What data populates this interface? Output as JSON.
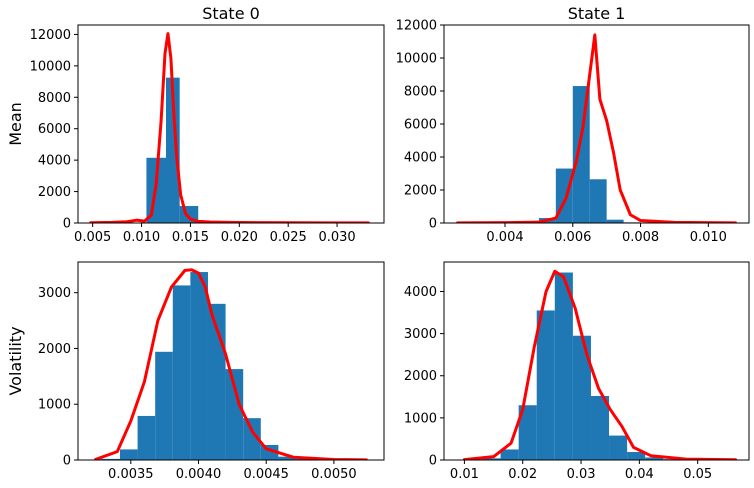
{
  "chart_data": [
    {
      "type": "bar",
      "title": "State 0",
      "ylabel": "Mean",
      "xlim": [
        0.0035,
        0.0348
      ],
      "ylim": [
        0,
        12600
      ],
      "xticks": [
        0.005,
        0.01,
        0.015,
        0.02,
        0.025,
        0.03
      ],
      "xtick_labels": [
        "0.005",
        "0.010",
        "0.015",
        "0.020",
        "0.025",
        "0.030"
      ],
      "yticks": [
        0,
        2000,
        4000,
        6000,
        8000,
        10000,
        12000
      ],
      "ytick_labels": [
        "0",
        "2000",
        "4000",
        "6000",
        "8000",
        "10000",
        "12000"
      ],
      "histogram": {
        "bin_edges": [
          0.0048,
          0.0076,
          0.0105,
          0.0125,
          0.0139,
          0.0158,
          0.0187,
          0.0216,
          0.0245,
          0.0274,
          0.0303,
          0.0332
        ],
        "counts": [
          5,
          20,
          4150,
          9250,
          1080,
          60,
          20,
          10,
          5,
          3,
          2
        ]
      },
      "kde": {
        "x": [
          0.0048,
          0.007,
          0.0085,
          0.0095,
          0.0103,
          0.011,
          0.0115,
          0.012,
          0.0124,
          0.0127,
          0.013,
          0.0133,
          0.0136,
          0.014,
          0.0145,
          0.015,
          0.0158,
          0.017,
          0.019,
          0.022,
          0.026,
          0.03,
          0.0332
        ],
        "y": [
          20,
          40,
          80,
          180,
          120,
          500,
          2500,
          6500,
          10800,
          12050,
          10500,
          7000,
          4200,
          1800,
          600,
          250,
          100,
          60,
          40,
          25,
          15,
          10,
          5
        ]
      }
    },
    {
      "type": "bar",
      "title": "State 1",
      "ylabel": "",
      "xlim": [
        0.0022,
        0.0112
      ],
      "ylim": [
        0,
        12000
      ],
      "xticks": [
        0.004,
        0.006,
        0.008,
        0.01
      ],
      "xtick_labels": [
        "0.004",
        "0.006",
        "0.008",
        "0.010"
      ],
      "yticks": [
        0,
        2000,
        4000,
        6000,
        8000,
        10000,
        12000
      ],
      "ytick_labels": [
        "0",
        "2000",
        "4000",
        "6000",
        "8000",
        "10000",
        "12000"
      ],
      "histogram": {
        "bin_edges": [
          0.0026,
          0.0034,
          0.0042,
          0.005,
          0.0055,
          0.006,
          0.0065,
          0.007,
          0.0075,
          0.008,
          0.0088,
          0.0096,
          0.0104,
          0.0108
        ],
        "counts": [
          3,
          5,
          40,
          300,
          3300,
          8300,
          2650,
          200,
          40,
          10,
          5,
          3,
          2
        ]
      },
      "kde": {
        "x": [
          0.0026,
          0.004,
          0.005,
          0.0055,
          0.0058,
          0.0061,
          0.0063,
          0.0065,
          0.00665,
          0.0068,
          0.007,
          0.0072,
          0.0074,
          0.0077,
          0.008,
          0.009,
          0.0108
        ],
        "y": [
          10,
          20,
          50,
          300,
          1500,
          3700,
          5800,
          9000,
          11400,
          7500,
          6200,
          4300,
          2000,
          500,
          150,
          40,
          10
        ]
      }
    },
    {
      "type": "bar",
      "title": "",
      "ylabel": "Volatility",
      "xlim": [
        0.00311,
        0.00537
      ],
      "ylim": [
        0,
        3550
      ],
      "xticks": [
        0.0035,
        0.004,
        0.0045,
        0.005
      ],
      "xtick_labels": [
        "0.0035",
        "0.0040",
        "0.0045",
        "0.0050"
      ],
      "yticks": [
        0,
        1000,
        2000,
        3000
      ],
      "ytick_labels": [
        "0",
        "1000",
        "2000",
        "3000"
      ],
      "histogram": {
        "bin_edges": [
          0.00328,
          0.00342,
          0.00355,
          0.00368,
          0.00381,
          0.00394,
          0.00407,
          0.0042,
          0.00433,
          0.00446,
          0.00459,
          0.00472,
          0.00485,
          0.00498,
          0.00511,
          0.00524
        ],
        "counts": [
          20,
          190,
          790,
          1940,
          3130,
          3370,
          2800,
          1630,
          750,
          270,
          60,
          20,
          8,
          4,
          2
        ]
      },
      "kde": {
        "x": [
          0.00324,
          0.0034,
          0.0035,
          0.0036,
          0.0037,
          0.0038,
          0.0039,
          0.00395,
          0.004,
          0.00405,
          0.0041,
          0.0042,
          0.0043,
          0.0044,
          0.0045,
          0.0047,
          0.005,
          0.00524
        ],
        "y": [
          10,
          150,
          700,
          1400,
          2500,
          3100,
          3400,
          3410,
          3350,
          3100,
          2600,
          1900,
          1000,
          500,
          200,
          50,
          10,
          3
        ]
      }
    },
    {
      "type": "bar",
      "title": "",
      "ylabel": "",
      "xlim": [
        0.0065,
        0.0588
      ],
      "ylim": [
        0,
        4700
      ],
      "xticks": [
        0.01,
        0.02,
        0.03,
        0.04,
        0.05
      ],
      "xtick_labels": [
        "0.01",
        "0.02",
        "0.03",
        "0.04",
        "0.05"
      ],
      "yticks": [
        0,
        1000,
        2000,
        3000,
        4000
      ],
      "ytick_labels": [
        "0",
        "1000",
        "2000",
        "3000",
        "4000"
      ],
      "histogram": {
        "bin_edges": [
          0.01,
          0.0131,
          0.0162,
          0.0193,
          0.0224,
          0.0255,
          0.0286,
          0.0317,
          0.0348,
          0.0379,
          0.041,
          0.0441,
          0.0472,
          0.0503,
          0.0534,
          0.0565
        ],
        "counts": [
          5,
          40,
          250,
          1300,
          3550,
          4450,
          2950,
          1520,
          580,
          190,
          60,
          20,
          8,
          4,
          2
        ]
      },
      "kde": {
        "x": [
          0.01,
          0.015,
          0.018,
          0.02,
          0.022,
          0.024,
          0.0255,
          0.027,
          0.029,
          0.031,
          0.033,
          0.035,
          0.037,
          0.039,
          0.042,
          0.048,
          0.0565
        ],
        "y": [
          10,
          80,
          400,
          1200,
          2700,
          4000,
          4480,
          4350,
          3600,
          2500,
          1700,
          1200,
          800,
          300,
          100,
          20,
          5
        ]
      }
    }
  ]
}
